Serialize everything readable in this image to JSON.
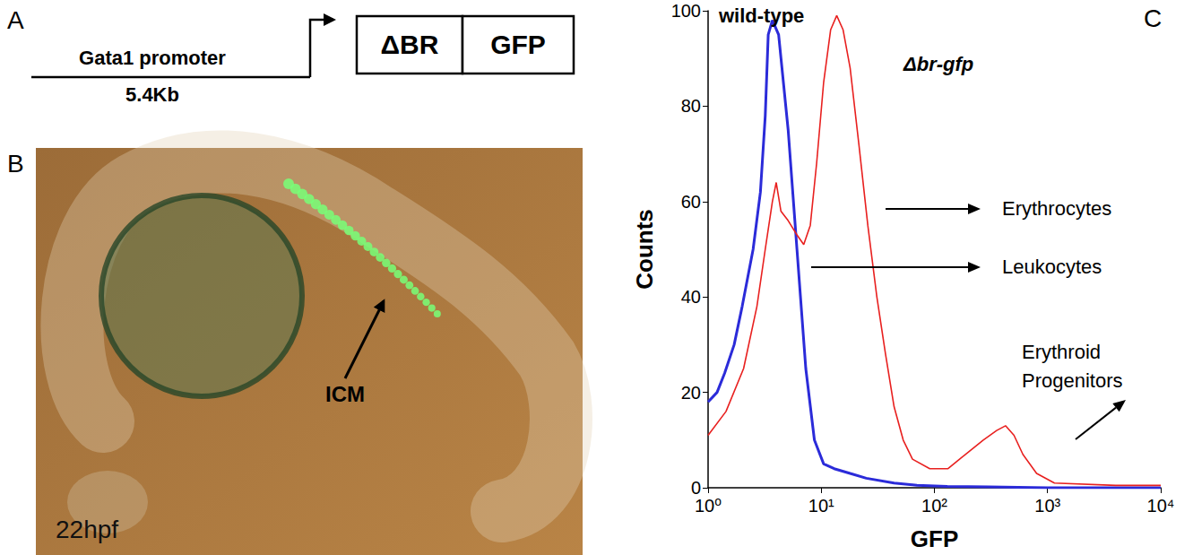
{
  "panel_a": {
    "letter": "A",
    "promoter": "Gata1 promoter",
    "length": "5.4Kb",
    "boxes": [
      "ΔBR",
      "GFP"
    ]
  },
  "panel_b": {
    "letter": "B",
    "stage": "22hpf",
    "label": "ICM"
  },
  "chart_data": {
    "letter": "C",
    "type": "line",
    "x_label": "GFP",
    "y_label": "Counts",
    "log": "x",
    "grid": false,
    "xlim": [
      1,
      10000
    ],
    "xticks": [
      {
        "value": 1,
        "label": "10⁰"
      },
      {
        "value": 10,
        "label": "10¹"
      },
      {
        "value": 100,
        "label": "10²"
      },
      {
        "value": 1000,
        "label": "10³"
      },
      {
        "value": 10000,
        "label": "10⁴"
      }
    ],
    "ylim": [
      0,
      100
    ],
    "yticks": [
      0,
      20,
      40,
      60,
      80,
      100
    ],
    "series": [
      {
        "name": "wild-type",
        "color": "#2b2bd9",
        "x": [
          1,
          1.2,
          1.4,
          1.7,
          2.0,
          2.5,
          2.9,
          3.2,
          3.4,
          3.7,
          4.2,
          5.1,
          6.1,
          7.3,
          8.7,
          10.5,
          13,
          18,
          25,
          44,
          70,
          130,
          300,
          1000,
          10000
        ],
        "values": [
          18,
          20,
          24,
          30,
          38,
          50,
          62,
          78,
          95,
          98,
          95,
          75,
          50,
          25,
          10,
          5,
          4,
          3,
          2,
          1,
          0.5,
          0.3,
          0.2,
          0,
          0
        ]
      },
      {
        "name": "Δbr-gfp",
        "color": "#e8201f",
        "x": [
          1,
          1.44,
          2.06,
          2.7,
          3.2,
          3.7,
          4.0,
          4.4,
          5.1,
          6.1,
          7.0,
          8.0,
          9.1,
          10.5,
          12.1,
          13.7,
          15.6,
          18,
          21.5,
          25.8,
          31,
          37,
          44,
          53,
          64,
          91,
          132,
          188,
          270,
          355,
          425,
          505,
          605,
          800,
          1150,
          4000,
          10000
        ],
        "values": [
          11,
          16,
          25,
          38,
          50,
          60,
          64,
          58,
          56,
          53,
          51,
          55,
          68,
          85,
          96,
          99,
          96,
          88,
          72,
          55,
          40,
          28,
          17,
          10,
          6,
          4,
          4,
          7,
          10,
          12,
          13,
          11,
          7,
          3,
          1,
          0.5,
          0.5
        ]
      }
    ],
    "annotations": [
      "Erythrocytes",
      "Leukocytes",
      "Erythroid Progenitors"
    ]
  }
}
